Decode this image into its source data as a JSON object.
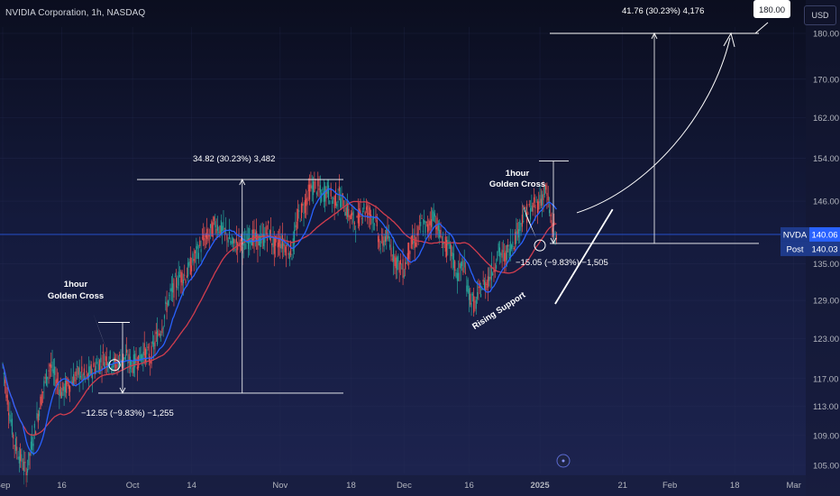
{
  "header": {
    "title": "NVIDIA Corporation, 1h, NASDAQ",
    "currency": "USD"
  },
  "colors": {
    "background_top": "#0b0e1f",
    "background_bottom": "#1d2450",
    "candle_up": "#26a69a",
    "candle_down": "#ef5350",
    "ma_fast": "#2962ff",
    "ma_slow": "#d13d4e",
    "price_line": "#2962ff",
    "annotation": "#ffffff"
  },
  "chart_data": {
    "type": "candlestick",
    "symbol": "NVDA",
    "interval": "1h",
    "y_axis": {
      "scale": "log",
      "ticks": [
        105,
        109,
        113,
        117,
        123,
        129,
        135,
        140,
        146,
        154,
        162,
        170,
        180
      ],
      "tick_labels": [
        "105.00",
        "109.00",
        "113.00",
        "117.00",
        "123.00",
        "129.00",
        "135.00",
        "140.00",
        "146.00",
        "154.00",
        "162.00",
        "170.00",
        "180.00"
      ],
      "range": [
        104,
        190
      ]
    },
    "x_axis": {
      "ticks": [
        {
          "label": "Sep",
          "pos": 0
        },
        {
          "label": "16",
          "pos": 10
        },
        {
          "label": "Oct",
          "pos": 22
        },
        {
          "label": "14",
          "pos": 32
        },
        {
          "label": "Nov",
          "pos": 47
        },
        {
          "label": "18",
          "pos": 59
        },
        {
          "label": "Dec",
          "pos": 68
        },
        {
          "label": "16",
          "pos": 79
        },
        {
          "label": "2025",
          "pos": 91
        },
        {
          "label": "21",
          "pos": 105
        },
        {
          "label": "Feb",
          "pos": 113
        },
        {
          "label": "18",
          "pos": 124
        },
        {
          "label": "Mar",
          "pos": 134
        }
      ]
    },
    "price_path": [
      [
        0,
        119
      ],
      [
        1,
        113
      ],
      [
        2,
        108
      ],
      [
        3,
        106
      ],
      [
        4,
        104
      ],
      [
        5,
        108
      ],
      [
        6,
        112
      ],
      [
        7,
        116
      ],
      [
        8,
        119
      ],
      [
        9,
        117
      ],
      [
        10,
        115
      ],
      [
        11,
        116
      ],
      [
        12,
        117
      ],
      [
        13,
        118
      ],
      [
        14,
        117
      ],
      [
        15,
        118
      ],
      [
        16,
        119
      ],
      [
        17,
        120
      ],
      [
        18,
        120
      ],
      [
        19,
        119
      ],
      [
        20,
        120
      ],
      [
        21,
        120
      ],
      [
        22,
        119
      ],
      [
        23,
        120
      ],
      [
        24,
        121
      ],
      [
        25,
        120
      ],
      [
        26,
        123
      ],
      [
        27,
        125
      ],
      [
        28,
        129
      ],
      [
        29,
        131
      ],
      [
        30,
        133
      ],
      [
        31,
        133
      ],
      [
        32,
        135
      ],
      [
        33,
        137
      ],
      [
        34,
        139
      ],
      [
        35,
        140
      ],
      [
        36,
        142
      ],
      [
        37,
        141
      ],
      [
        38,
        140
      ],
      [
        39,
        138
      ],
      [
        40,
        139
      ],
      [
        41,
        138
      ],
      [
        42,
        140
      ],
      [
        43,
        139
      ],
      [
        44,
        139
      ],
      [
        45,
        141
      ],
      [
        46,
        138
      ],
      [
        47,
        139
      ],
      [
        48,
        138
      ],
      [
        49,
        137
      ],
      [
        50,
        143
      ],
      [
        51,
        145
      ],
      [
        52,
        148
      ],
      [
        53,
        149
      ],
      [
        54,
        147
      ],
      [
        55,
        148
      ],
      [
        56,
        146
      ],
      [
        57,
        147
      ],
      [
        58,
        145
      ],
      [
        59,
        143
      ],
      [
        60,
        142
      ],
      [
        61,
        145
      ],
      [
        62,
        144
      ],
      [
        63,
        143
      ],
      [
        64,
        138
      ],
      [
        65,
        140
      ],
      [
        66,
        137
      ],
      [
        67,
        135
      ],
      [
        68,
        134
      ],
      [
        69,
        138
      ],
      [
        70,
        139
      ],
      [
        71,
        142
      ],
      [
        72,
        141
      ],
      [
        73,
        144
      ],
      [
        74,
        140
      ],
      [
        75,
        138
      ],
      [
        76,
        137
      ],
      [
        77,
        133
      ],
      [
        78,
        135
      ],
      [
        79,
        130
      ],
      [
        80,
        128
      ],
      [
        81,
        131
      ],
      [
        82,
        132
      ],
      [
        83,
        134
      ],
      [
        84,
        137
      ],
      [
        85,
        136
      ],
      [
        86,
        138
      ],
      [
        87,
        140
      ],
      [
        88,
        143
      ],
      [
        89,
        144
      ],
      [
        90,
        145
      ],
      [
        91,
        146
      ],
      [
        92,
        148
      ],
      [
        93,
        142
      ],
      [
        94,
        139
      ]
    ],
    "series": [
      {
        "name": "NVDA",
        "last_value": 140.06,
        "label": "NVDA",
        "value_label": "140.06"
      },
      {
        "name": "Post",
        "last_value": 140.03,
        "label": "Post",
        "value_label": "140.03"
      }
    ],
    "indicators": [
      {
        "type": "moving_average",
        "role": "fast"
      },
      {
        "type": "moving_average",
        "role": "slow"
      }
    ],
    "annotations": {
      "golden_cross_1": {
        "text_line1": "1hour",
        "text_line2": "Golden Cross",
        "x": 20,
        "price": 119
      },
      "move_1": {
        "x": 20,
        "from": 125.5,
        "to": 114.9,
        "label": "−12.55 (−9.83%) −1,255"
      },
      "move_2": {
        "x": 45,
        "from": 114.9,
        "to": 150.0,
        "label": "34.82 (30.23%) 3,482"
      },
      "golden_cross_2": {
        "text_line1": "1hour",
        "text_line2": "Golden Cross",
        "x": 92,
        "price": 138
      },
      "move_3": {
        "x": 103,
        "from": 153.5,
        "to": 138.5,
        "label": "−15.05 (−9.83%) −1,505"
      },
      "support": {
        "label": "Rising Support",
        "from_x": 89,
        "from_price": 128,
        "to_x": 114,
        "to_price": 145
      },
      "projection": {
        "x": 123,
        "from": 138.5,
        "to": 180,
        "label": "41.76 (30.23%) 4,176",
        "target_label": "180.00"
      }
    }
  }
}
